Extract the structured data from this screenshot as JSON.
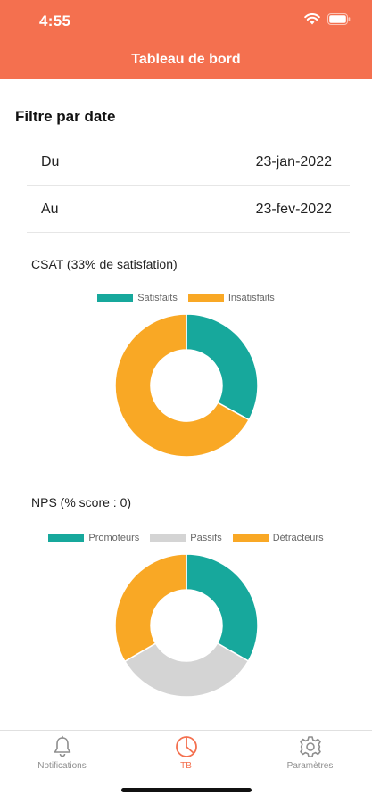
{
  "status_bar": {
    "time": "4:55",
    "wifi_icon": "wifi-icon",
    "battery_icon": "battery-icon"
  },
  "header": {
    "title": "Tableau de bord",
    "color": "#f4704f"
  },
  "filter": {
    "title": "Filtre par date",
    "from": {
      "label": "Du",
      "value": "23-jan-2022"
    },
    "to": {
      "label": "Au",
      "value": "23-fev-2022"
    }
  },
  "csat": {
    "title": "CSAT (33% de satisfation)",
    "chart_data": {
      "type": "pie",
      "donut": true,
      "categories": [
        "Satisfaits",
        "Insatisfaits"
      ],
      "values": [
        33,
        67
      ],
      "colors": [
        "#17a89c",
        "#f9a825"
      ],
      "legend": "top"
    }
  },
  "nps": {
    "title": "NPS (% score : 0)",
    "chart_data": {
      "type": "pie",
      "donut": true,
      "categories": [
        "Promoteurs",
        "Passifs",
        "Détracteurs"
      ],
      "values": [
        33.3,
        33.3,
        33.4
      ],
      "colors": [
        "#17a89c",
        "#d4d4d4",
        "#f9a825"
      ],
      "legend": "top"
    }
  },
  "tabbar": {
    "items": [
      {
        "label": "Notifications",
        "icon": "bell-icon",
        "active": false
      },
      {
        "label": "TB",
        "icon": "pie-chart-icon",
        "active": true
      },
      {
        "label": "Paramètres",
        "icon": "gear-icon",
        "active": false
      }
    ],
    "active_color": "#f4704f",
    "inactive_color": "#8e8e8e"
  }
}
